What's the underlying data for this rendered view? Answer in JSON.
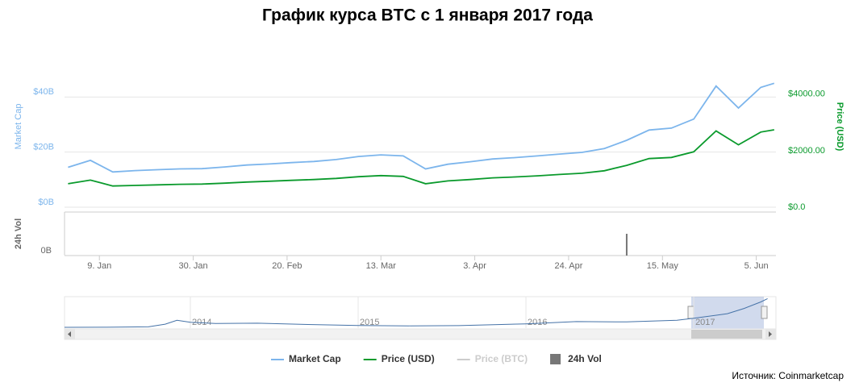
{
  "chart_data": {
    "type": "line",
    "title": "График курса BTC с 1 января 2017 года",
    "y_label": "Market Cap",
    "y2_label": "Price (USD)",
    "vol_label": "24h Vol",
    "source": "Источник: Coinmarketcap",
    "x": [
      2,
      7,
      12,
      17,
      22,
      27,
      32,
      37,
      42,
      47,
      52,
      57,
      62,
      67,
      72,
      77,
      82,
      87,
      92,
      97,
      102,
      107,
      112,
      117,
      122,
      127,
      132,
      137,
      142,
      147,
      152,
      157,
      160
    ],
    "xlim": [
      1.2,
      160.4
    ],
    "xticks": [
      {
        "value": 9,
        "label": "9. Jan"
      },
      {
        "value": 30,
        "label": "30. Jan"
      },
      {
        "value": 51,
        "label": "20. Feb"
      },
      {
        "value": 72,
        "label": "13. Mar"
      },
      {
        "value": 93,
        "label": "3. Apr"
      },
      {
        "value": 114,
        "label": "24. Apr"
      },
      {
        "value": 135,
        "label": "15. May"
      },
      {
        "value": 156,
        "label": "5. Jun"
      }
    ],
    "ylim": [
      0,
      60
    ],
    "yticks": [
      {
        "value": 0,
        "label": "$0B"
      },
      {
        "value": 20,
        "label": "$20B"
      },
      {
        "value": 40,
        "label": "$40B"
      }
    ],
    "y2lim": [
      0,
      5850
    ],
    "y2ticks": [
      {
        "value": 0,
        "label": "$0.0"
      },
      {
        "value": 2000,
        "label": "$2000.00"
      },
      {
        "value": 4000,
        "label": "$4000.00"
      }
    ],
    "vol_ylim": [
      0,
      2
    ],
    "vol_yticks": [
      {
        "value": 0,
        "label": "0B"
      }
    ],
    "grid": true,
    "series": [
      {
        "name": "Market Cap",
        "color": "#7cb5ec",
        "values": [
          14.5,
          17.0,
          12.8,
          13.3,
          13.6,
          13.9,
          14.0,
          14.6,
          15.3,
          15.7,
          16.2,
          16.6,
          17.3,
          18.4,
          19.0,
          18.6,
          13.9,
          15.6,
          16.5,
          17.5,
          18.0,
          18.6,
          19.3,
          19.9,
          21.3,
          24.3,
          28.0,
          28.7,
          32.0,
          44.0,
          36.0,
          43.5,
          45.0
        ]
      },
      {
        "name": "Price (USD)",
        "color": "#0a9a2c",
        "axis": "y2",
        "values": [
          830,
          960,
          750,
          770,
          790,
          810,
          820,
          850,
          890,
          920,
          950,
          980,
          1020,
          1080,
          1120,
          1090,
          830,
          930,
          980,
          1040,
          1070,
          1110,
          1160,
          1200,
          1290,
          1480,
          1720,
          1760,
          1960,
          2700,
          2210,
          2660,
          2740
        ]
      },
      {
        "name": "Price (BTC)",
        "color": "#cccccc",
        "visible": false
      },
      {
        "name": "24h Vol",
        "color": "#777777",
        "axis": "vol",
        "values": [
          0,
          0,
          0,
          0,
          0,
          0,
          0,
          0,
          0,
          0,
          0,
          0,
          0,
          0,
          0,
          0,
          0,
          0,
          0,
          0,
          0,
          0,
          0,
          0,
          0,
          1.0,
          0,
          0,
          0,
          0,
          0,
          0,
          0
        ]
      }
    ],
    "navigator": {
      "x": [
        2013.25,
        2013.5,
        2013.75,
        2013.85,
        2013.92,
        2014.0,
        2014.15,
        2014.4,
        2014.7,
        2015.0,
        2015.3,
        2015.6,
        2016.0,
        2016.3,
        2016.6,
        2016.9,
        2017.0,
        2017.2,
        2017.3,
        2017.4,
        2017.44
      ],
      "values": [
        1.2,
        1.3,
        2.0,
        6.0,
        12.0,
        9.0,
        7.0,
        7.5,
        5.5,
        4.0,
        3.5,
        3.8,
        6.5,
        10.0,
        9.5,
        12.0,
        15.0,
        22.0,
        30.0,
        40.0,
        45.0
      ],
      "xlim": [
        2013.25,
        2017.49
      ],
      "ylim": [
        0,
        48
      ],
      "xticks": [
        2014,
        2015,
        2016,
        2017
      ]
    }
  }
}
